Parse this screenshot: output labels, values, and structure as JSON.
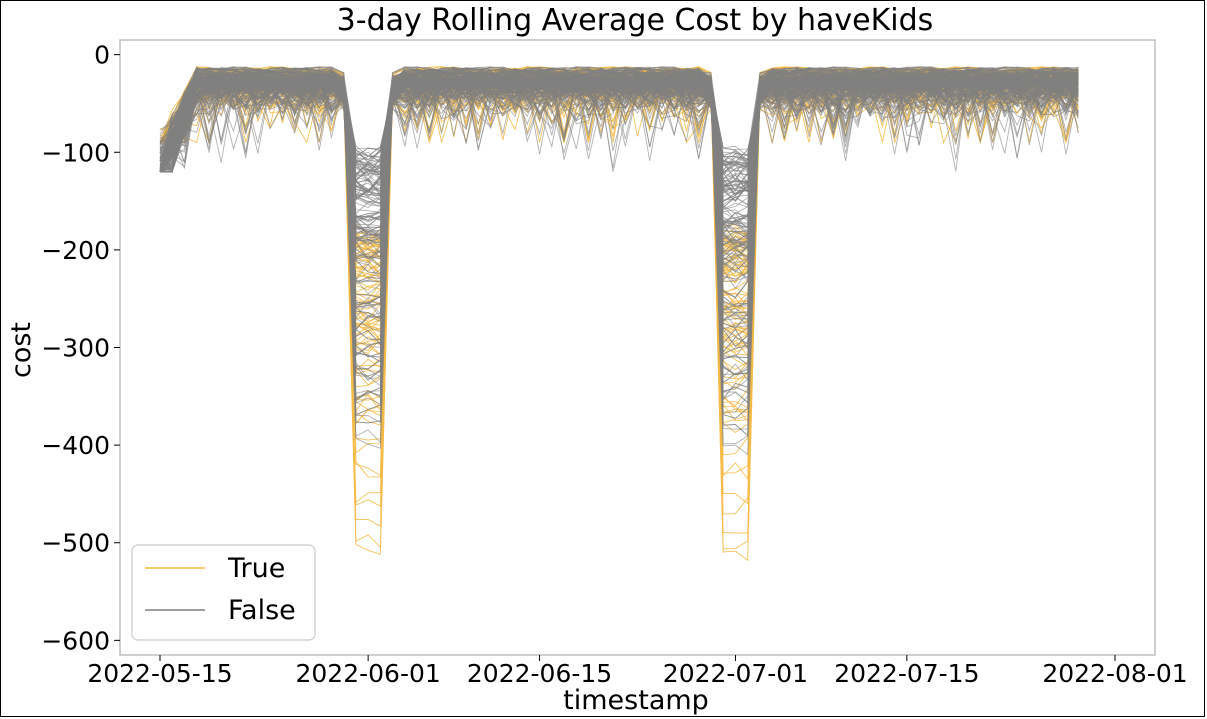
{
  "chart_data": {
    "type": "line",
    "title": "3-day Rolling Average Cost by haveKids",
    "xlabel": "timestamp",
    "ylabel": "cost",
    "x_ticks": [
      "2022-05-15",
      "2022-06-01",
      "2022-06-15",
      "2022-07-01",
      "2022-07-15",
      "2022-08-01"
    ],
    "x_tick_dates": [
      "2022-05-15",
      "2022-06-01",
      "2022-06-15",
      "2022-07-01",
      "2022-07-15",
      "2022-08-01"
    ],
    "xlim": [
      "2022-05-15",
      "2022-08-01"
    ],
    "y_ticks": [
      0,
      -100,
      -200,
      -300,
      -400,
      -500,
      -600
    ],
    "ylim": [
      -615,
      15
    ],
    "grid": false,
    "legend": {
      "placement": "lower-left",
      "entries": [
        {
          "label": "True",
          "color": "#f5b942"
        },
        {
          "label": "False",
          "color": "#808080"
        }
      ]
    },
    "x_range": [
      "2022-05-15",
      "2022-07-29"
    ],
    "dips": [
      {
        "start": "2022-05-30",
        "min_date": "2022-06-01",
        "end": "2022-06-03"
      },
      {
        "start": "2022-06-29",
        "min_date": "2022-07-01",
        "end": "2022-07-03"
      }
    ],
    "series": [
      {
        "name": "True",
        "color": "#f5b942",
        "count": 90,
        "baseline_range": [
          -90,
          -10
        ],
        "dip_range": [
          -585,
          -180
        ]
      },
      {
        "name": "False",
        "color": "#808080",
        "count": 200,
        "baseline_range": [
          -120,
          -10
        ],
        "dip_range": [
          -470,
          -100
        ]
      }
    ]
  }
}
